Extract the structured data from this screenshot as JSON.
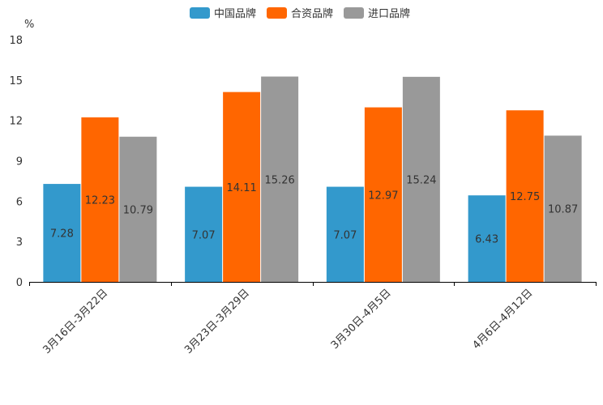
{
  "chart_data": {
    "type": "bar",
    "title": "",
    "xlabel": "",
    "ylabel": "%",
    "ylim": [
      0,
      18
    ],
    "yticks": [
      0,
      3,
      6,
      9,
      12,
      15,
      18
    ],
    "categories": [
      "3月16日-3月22日",
      "3月23日-3月29日",
      "3月30日-4月5日",
      "4月6日-4月12日"
    ],
    "series": [
      {
        "name": "中国品牌",
        "color": "#3399cc",
        "values": [
          7.28,
          7.07,
          7.07,
          6.43
        ],
        "labels": [
          "7.28",
          "7.07",
          "7.07",
          "6.43"
        ]
      },
      {
        "name": "合资品牌",
        "color": "#ff6600",
        "values": [
          12.23,
          14.11,
          12.97,
          12.75
        ],
        "labels": [
          "12.23",
          "14.11",
          "12.97",
          "12.75"
        ]
      },
      {
        "name": "进口品牌",
        "color": "#999999",
        "values": [
          10.79,
          15.26,
          15.24,
          10.87
        ],
        "labels": [
          "10.79",
          "15.26",
          "15.24",
          "10.87"
        ]
      }
    ],
    "legend_position": "top-center",
    "grid": false
  }
}
